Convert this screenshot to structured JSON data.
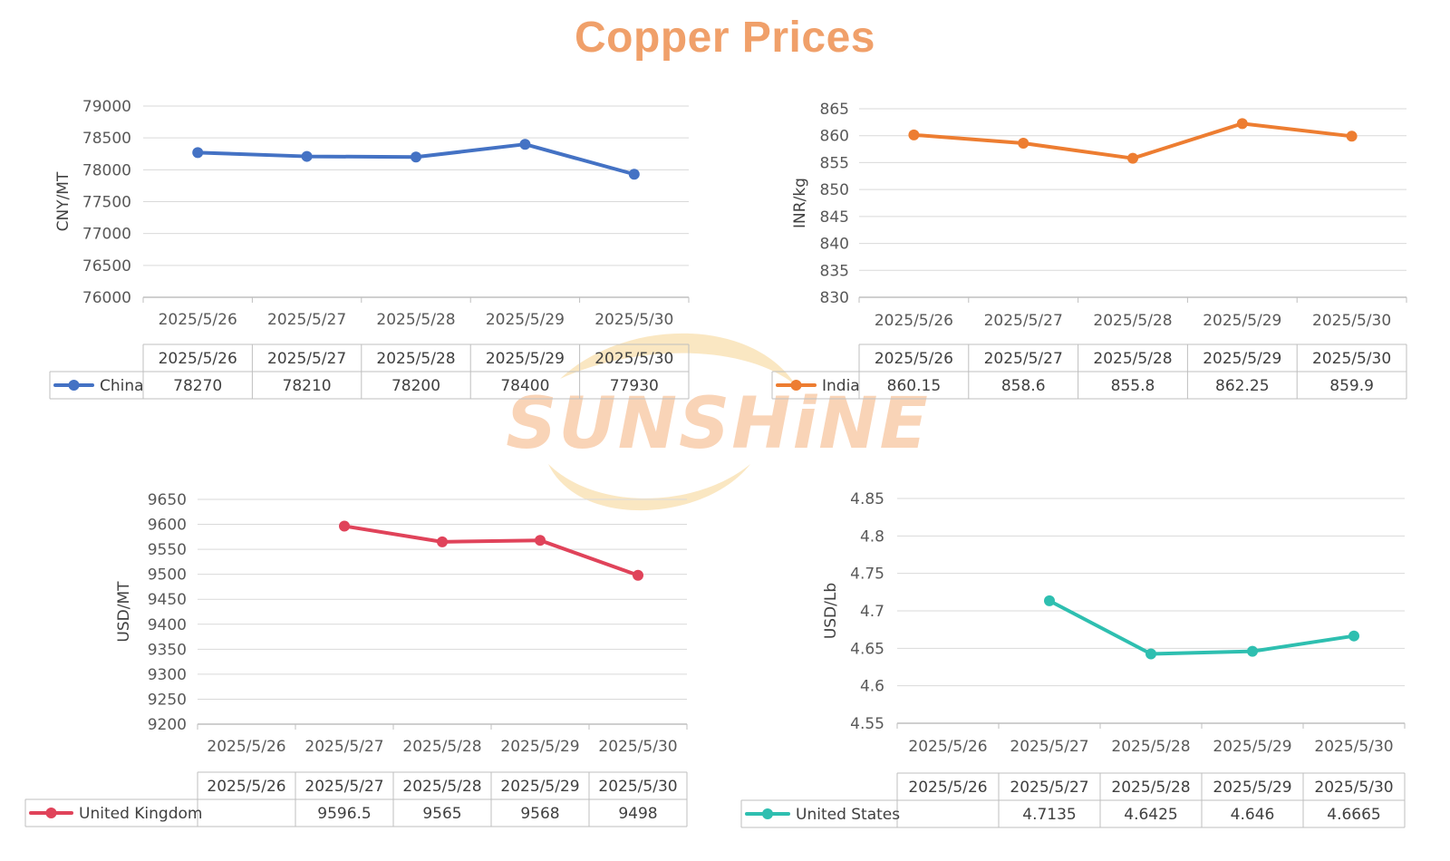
{
  "title": "Copper Prices",
  "watermark": {
    "text": "SUNSHiNE",
    "color": "#F7C6A0",
    "swoosh_color": "#F6D79A"
  },
  "chart_data": [
    {
      "type": "line",
      "title": "",
      "categories": [
        "2025/5/26",
        "2025/5/27",
        "2025/5/28",
        "2025/5/29",
        "2025/5/30"
      ],
      "ylabel": "CNY/MT",
      "xlabel": "",
      "ylim": [
        76000,
        79000
      ],
      "yticks": [
        76000,
        76500,
        77000,
        77500,
        78000,
        78500,
        79000
      ],
      "grid": true,
      "color": "#4472C4",
      "series": [
        {
          "name": "China",
          "values": [
            78270,
            78210,
            78200,
            78400,
            77930
          ]
        }
      ],
      "table_cells": [
        "78270",
        "78210",
        "78200",
        "78400",
        "77930"
      ]
    },
    {
      "type": "line",
      "title": "",
      "categories": [
        "2025/5/26",
        "2025/5/27",
        "2025/5/28",
        "2025/5/29",
        "2025/5/30"
      ],
      "ylabel": "INR/kg",
      "xlabel": "",
      "ylim": [
        830,
        865
      ],
      "yticks": [
        830,
        835,
        840,
        845,
        850,
        855,
        860,
        865
      ],
      "grid": true,
      "color": "#ED7D31",
      "series": [
        {
          "name": "India",
          "values": [
            860.15,
            858.6,
            855.8,
            862.25,
            859.9
          ]
        }
      ],
      "table_cells": [
        "860.15",
        "858.6",
        "855.8",
        "862.25",
        "859.9"
      ]
    },
    {
      "type": "line",
      "title": "",
      "categories": [
        "2025/5/26",
        "2025/5/27",
        "2025/5/28",
        "2025/5/29",
        "2025/5/30"
      ],
      "ylabel": "USD/MT",
      "xlabel": "",
      "ylim": [
        9200,
        9650
      ],
      "yticks": [
        9200,
        9250,
        9300,
        9350,
        9400,
        9450,
        9500,
        9550,
        9600,
        9650
      ],
      "grid": true,
      "color": "#E0435A",
      "series": [
        {
          "name": "United Kingdom",
          "values": [
            null,
            9596.5,
            9565,
            9568,
            9498
          ]
        }
      ],
      "table_cells": [
        "",
        "9596.5",
        "9565",
        "9568",
        "9498"
      ]
    },
    {
      "type": "line",
      "title": "",
      "categories": [
        "2025/5/26",
        "2025/5/27",
        "2025/5/28",
        "2025/5/29",
        "2025/5/30"
      ],
      "ylabel": "USD/Lb",
      "xlabel": "",
      "ylim": [
        4.55,
        4.85
      ],
      "yticks": [
        "4.55",
        "4.6",
        "4.65",
        "4.7",
        "4.75",
        "4.8",
        "4.85"
      ],
      "grid": true,
      "color": "#2EBFB0",
      "series": [
        {
          "name": "United States",
          "values": [
            null,
            4.7135,
            4.6425,
            4.646,
            4.6665
          ]
        }
      ],
      "table_cells": [
        "",
        "4.7135",
        "4.6425",
        "4.646",
        "4.6665"
      ]
    }
  ]
}
